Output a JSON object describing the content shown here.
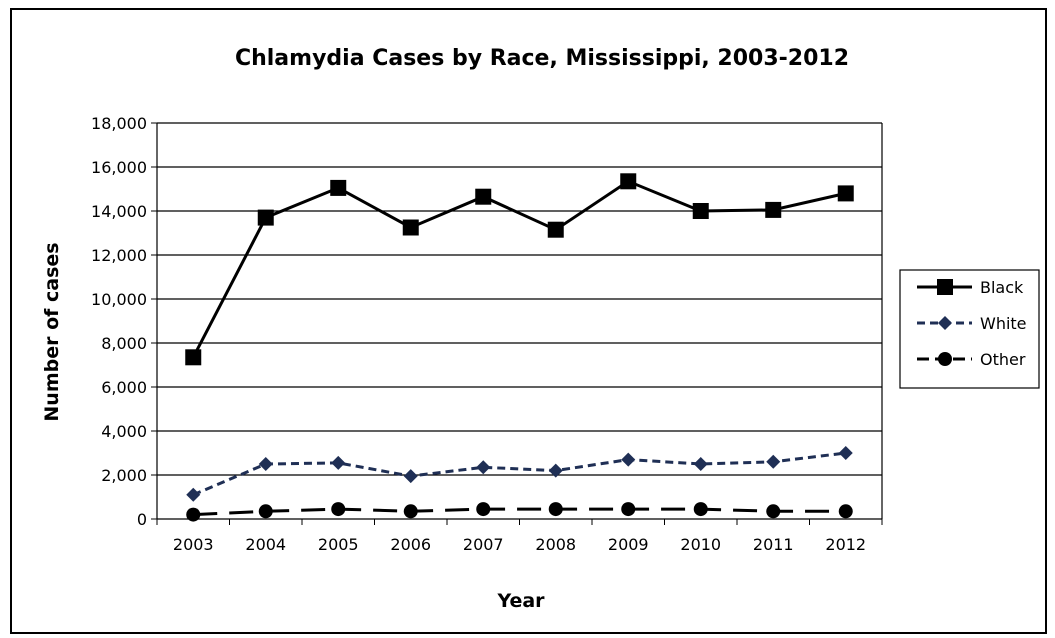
{
  "chart_data": {
    "type": "line",
    "title": "Chlamydia Cases by Race, Mississippi, 2003-2012",
    "xlabel": "Year",
    "ylabel": "Number of cases",
    "categories": [
      "2003",
      "2004",
      "2005",
      "2006",
      "2007",
      "2008",
      "2009",
      "2010",
      "2011",
      "2012"
    ],
    "ylim": [
      0,
      18000
    ],
    "yticks": [
      0,
      2000,
      4000,
      6000,
      8000,
      10000,
      12000,
      14000,
      16000,
      18000
    ],
    "ytick_labels": [
      "0",
      "2,000",
      "4,000",
      "6,000",
      "8,000",
      "10,000",
      "12,000",
      "14,000",
      "16,000",
      "18,000"
    ],
    "grid": "horizontal",
    "legend_position": "right",
    "series": [
      {
        "name": "Black",
        "values": [
          7350,
          13700,
          15050,
          13250,
          14650,
          13150,
          15350,
          14000,
          14050,
          14800
        ],
        "color": "#000000",
        "marker": "square",
        "line": "solid"
      },
      {
        "name": "White",
        "values": [
          1100,
          2500,
          2550,
          1950,
          2350,
          2200,
          2700,
          2500,
          2600,
          3000
        ],
        "color": "#1f2f55",
        "marker": "diamond",
        "line": "dashed"
      },
      {
        "name": "Other",
        "values": [
          200,
          350,
          450,
          350,
          450,
          450,
          450,
          450,
          350,
          350
        ],
        "color": "#000000",
        "marker": "circle",
        "line": "longdash"
      }
    ]
  }
}
